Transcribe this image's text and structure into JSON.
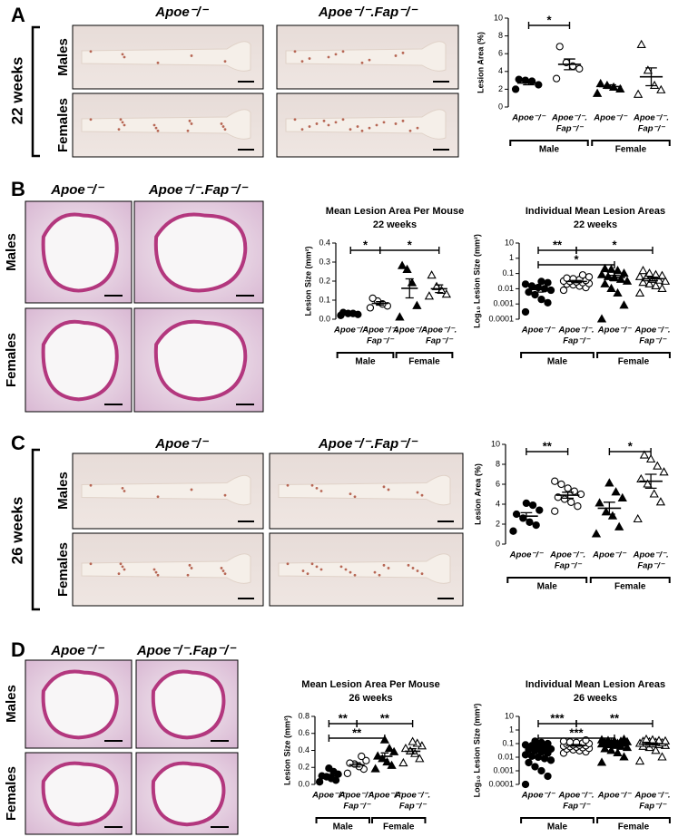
{
  "panels": [
    {
      "letter": "A",
      "column_labels": [
        "Apoe⁻/⁻",
        "Apoe⁻/⁻.Fap⁻/⁻"
      ],
      "row_labels": [
        "Males",
        "Females"
      ],
      "side_label": "22 weeks"
    },
    {
      "letter": "B",
      "column_labels": [
        "Apoe⁻/⁻",
        "Apoe⁻/⁻.Fap⁻/⁻"
      ],
      "row_labels": [
        "Males",
        "Females"
      ]
    },
    {
      "letter": "C",
      "column_labels": [
        "Apoe⁻/⁻",
        "Apoe⁻/⁻.Fap⁻/⁻"
      ],
      "row_labels": [
        "Males",
        "Females"
      ],
      "side_label": "26 weeks"
    },
    {
      "letter": "D",
      "column_labels": [
        "Apoe⁻/⁻",
        "Apoe⁻/⁻.Fap⁻/⁻"
      ],
      "row_labels": [
        "Males",
        "Females"
      ]
    }
  ],
  "chart_data": [
    {
      "type": "dot",
      "ylabel": "Lesion Area (%)",
      "ylim": [
        0,
        10
      ],
      "yticks": [
        0,
        2,
        4,
        6,
        8,
        10
      ],
      "categories": [
        [
          "Apoe⁻/⁻"
        ],
        [
          "Apoe⁻/⁻.",
          "Fap⁻/⁻"
        ],
        [
          "Apoe⁻/⁻"
        ],
        [
          "Apoe⁻/⁻.",
          "Fap⁻/⁻"
        ]
      ],
      "groups": [
        {
          "label": "Male",
          "from": 0,
          "to": 1
        },
        {
          "label": "Female",
          "from": 2,
          "to": 3
        }
      ],
      "markers": [
        "circle-filled",
        "circle-open",
        "triangle-filled",
        "triangle-open"
      ],
      "points": [
        [
          2.0,
          2.5,
          2.9,
          3.0,
          3.1
        ],
        [
          3.2,
          4.3,
          4.6,
          5.0,
          6.8
        ],
        [
          1.5,
          2.0,
          2.2,
          2.4,
          2.6
        ],
        [
          1.4,
          1.9,
          2.4,
          4.1,
          7.0
        ]
      ],
      "means": [
        2.7,
        4.8,
        2.3,
        3.4
      ],
      "sem": [
        0.2,
        0.6,
        0.2,
        1.0
      ],
      "brackets": [
        {
          "from": 0,
          "to": 1,
          "label": "*"
        }
      ]
    },
    {
      "type": "dot",
      "title": "Mean Lesion Area Per Mouse",
      "subtitle": "22 weeks",
      "ylabel": "Lesion Size (mm²)",
      "ylim": [
        0,
        0.4
      ],
      "yticks": [
        {
          "value": 0,
          "label": "0.0"
        },
        0.1,
        0.2,
        0.3,
        0.4
      ],
      "categories": [
        [
          "Apoe⁻/⁻"
        ],
        [
          "Apoe⁻/⁻.",
          "Fap⁻/⁻"
        ],
        [
          "Apoe⁻/⁻"
        ],
        [
          "Apoe⁻/⁻.",
          "Fap⁻/⁻"
        ]
      ],
      "groups": [
        {
          "label": "Male",
          "from": 0,
          "to": 1
        },
        {
          "label": "Female",
          "from": 2,
          "to": 3
        }
      ],
      "markers": [
        "circle-filled",
        "circle-open",
        "triangle-filled",
        "triangle-open"
      ],
      "points": [
        [
          0.02,
          0.025,
          0.03,
          0.03,
          0.035
        ],
        [
          0.06,
          0.07,
          0.08,
          0.095,
          0.11
        ],
        [
          0.01,
          0.07,
          0.19,
          0.26,
          0.28
        ],
        [
          0.12,
          0.13,
          0.15,
          0.17,
          0.23
        ]
      ],
      "means": [
        0.028,
        0.083,
        0.162,
        0.16
      ],
      "sem": [
        0.003,
        0.009,
        0.05,
        0.02
      ],
      "brackets": [
        {
          "from": 0,
          "to": 1,
          "label": "*"
        },
        {
          "from": 1,
          "to": 3,
          "label": "*"
        }
      ]
    },
    {
      "type": "dot",
      "title": "Individual Mean Lesion Areas",
      "subtitle": "22 weeks",
      "ylabel": "Log₁₀ Lesion Size (mm²)",
      "log": true,
      "ylim": [
        0.0001,
        10
      ],
      "yticks": [
        0.0001,
        0.001,
        0.01,
        0.1,
        1,
        10
      ],
      "categories": [
        [
          "Apoe⁻/⁻"
        ],
        [
          "Apoe⁻/⁻.",
          "Fap⁻/⁻"
        ],
        [
          "Apoe⁻/⁻"
        ],
        [
          "Apoe⁻/⁻.",
          "Fap⁻/⁻"
        ]
      ],
      "groups": [
        {
          "label": "Male",
          "from": 0,
          "to": 1
        },
        {
          "label": "Female",
          "from": 2,
          "to": 3
        }
      ],
      "markers": [
        "circle-filled",
        "circle-open",
        "triangle-filled",
        "triangle-open"
      ],
      "points": [
        [
          0.0003,
          0.0012,
          0.002,
          0.004,
          0.006,
          0.008,
          0.01,
          0.012,
          0.015,
          0.02,
          0.025,
          0.03
        ],
        [
          0.008,
          0.012,
          0.015,
          0.018,
          0.02,
          0.022,
          0.025,
          0.028,
          0.03,
          0.032,
          0.035,
          0.04,
          0.045,
          0.05,
          0.06,
          0.08
        ],
        [
          0.0001,
          0.0008,
          0.005,
          0.01,
          0.02,
          0.03,
          0.04,
          0.05,
          0.06,
          0.08,
          0.1,
          0.15,
          0.18,
          0.2
        ],
        [
          0.005,
          0.01,
          0.015,
          0.02,
          0.025,
          0.03,
          0.035,
          0.04,
          0.05,
          0.06,
          0.07,
          0.08,
          0.1,
          0.15
        ]
      ],
      "means": [
        0.009,
        0.03,
        0.055,
        0.045
      ],
      "sem": [
        0.003,
        0.005,
        0.02,
        0.012
      ],
      "brackets": [
        {
          "from": 0,
          "to": 1,
          "label": "**"
        },
        {
          "from": 1,
          "to": 3,
          "label": "*"
        },
        {
          "from": 0,
          "to": 2,
          "label": "*"
        }
      ]
    },
    {
      "type": "dot",
      "ylabel": "Lesion Area (%)",
      "ylim": [
        0,
        10
      ],
      "yticks": [
        0,
        2,
        4,
        6,
        8,
        10
      ],
      "categories": [
        [
          "Apoe⁻/⁻"
        ],
        [
          "Apoe⁻/⁻.",
          "Fap⁻/⁻"
        ],
        [
          "Apoe⁻/⁻"
        ],
        [
          "Apoe⁻/⁻.",
          "Fap⁻/⁻"
        ]
      ],
      "groups": [
        {
          "label": "Male",
          "from": 0,
          "to": 1
        },
        {
          "label": "Female",
          "from": 2,
          "to": 3
        }
      ],
      "markers": [
        "circle-filled",
        "circle-open",
        "triangle-filled",
        "triangle-open"
      ],
      "points": [
        [
          1.3,
          1.9,
          2.2,
          2.6,
          3.0,
          3.4,
          3.9,
          4.1
        ],
        [
          3.3,
          3.8,
          4.2,
          4.5,
          4.7,
          5.0,
          5.3,
          5.6,
          6.0,
          6.3
        ],
        [
          1.0,
          1.7,
          2.8,
          3.2,
          4.1,
          4.6,
          5.2,
          6.1
        ],
        [
          2.5,
          4.2,
          5.0,
          6.0,
          6.5,
          7.2,
          7.8,
          8.5,
          8.9
        ]
      ],
      "means": [
        2.8,
        4.9,
        3.6,
        6.3
      ],
      "sem": [
        0.35,
        0.3,
        0.6,
        0.7
      ],
      "brackets": [
        {
          "from": 0,
          "to": 1,
          "label": "**"
        },
        {
          "from": 2,
          "to": 3,
          "label": "*"
        }
      ]
    },
    {
      "type": "dot",
      "title": "Mean Lesion Area Per Mouse",
      "subtitle": "26 weeks",
      "ylabel": "Lesion Size (mm²)",
      "ylim": [
        0,
        0.8
      ],
      "yticks": [
        {
          "value": 0,
          "label": "0.0"
        },
        0.2,
        0.4,
        0.6,
        0.8
      ],
      "categories": [
        [
          "Apoe⁻/⁻"
        ],
        [
          "Apoe⁻/⁻.",
          "Fap⁻/⁻"
        ],
        [
          "Apoe⁻/⁻"
        ],
        [
          "Apoe⁻/⁻.",
          "Fap⁻/⁻"
        ]
      ],
      "groups": [
        {
          "label": "Male",
          "from": 0,
          "to": 1
        },
        {
          "label": "Female",
          "from": 2,
          "to": 3
        }
      ],
      "markers": [
        "circle-filled",
        "circle-open",
        "triangle-filled",
        "triangle-open"
      ],
      "points": [
        [
          0.03,
          0.05,
          0.07,
          0.09,
          0.1,
          0.12,
          0.15,
          0.19
        ],
        [
          0.13,
          0.18,
          0.21,
          0.24,
          0.25,
          0.28,
          0.33
        ],
        [
          0.18,
          0.22,
          0.26,
          0.3,
          0.33,
          0.38,
          0.42,
          0.52
        ],
        [
          0.25,
          0.3,
          0.36,
          0.39,
          0.42,
          0.45,
          0.48,
          0.5
        ]
      ],
      "means": [
        0.1,
        0.23,
        0.33,
        0.39
      ],
      "sem": [
        0.018,
        0.025,
        0.04,
        0.03
      ],
      "brackets": [
        {
          "from": 1,
          "to": 3,
          "label": "**"
        },
        {
          "from": 0,
          "to": 2,
          "label": "**"
        },
        {
          "from": 0,
          "to": 1,
          "label": "**"
        }
      ]
    },
    {
      "type": "dot",
      "title": "Individual Mean Lesion Areas",
      "subtitle": "26 weeks",
      "ylabel": "Log₁₀ Lesion Size (mm²)",
      "log": true,
      "ylim": [
        0.0001,
        10
      ],
      "yticks": [
        0.0001,
        0.001,
        0.01,
        0.1,
        1,
        10
      ],
      "categories": [
        [
          "Apoe⁻/⁻"
        ],
        [
          "Apoe⁻/⁻.",
          "Fap⁻/⁻"
        ],
        [
          "Apoe⁻/⁻"
        ],
        [
          "Apoe⁻/⁻.",
          "Fap⁻/⁻"
        ]
      ],
      "groups": [
        {
          "label": "Male",
          "from": 0,
          "to": 1
        },
        {
          "label": "Female",
          "from": 2,
          "to": 3
        }
      ],
      "markers": [
        "circle-filled",
        "circle-open",
        "triangle-filled",
        "triangle-open"
      ],
      "points": [
        [
          0.0001,
          0.0004,
          0.001,
          0.002,
          0.004,
          0.006,
          0.008,
          0.01,
          0.012,
          0.015,
          0.02,
          0.025,
          0.03,
          0.035,
          0.04,
          0.05,
          0.06,
          0.07,
          0.08,
          0.1,
          0.12,
          0.15
        ],
        [
          0.02,
          0.025,
          0.03,
          0.035,
          0.04,
          0.045,
          0.05,
          0.055,
          0.06,
          0.065,
          0.07,
          0.075,
          0.08,
          0.09,
          0.1,
          0.11,
          0.12,
          0.13,
          0.15,
          0.18
        ],
        [
          0.004,
          0.01,
          0.02,
          0.03,
          0.04,
          0.05,
          0.06,
          0.07,
          0.08,
          0.09,
          0.1,
          0.1,
          0.11,
          0.12,
          0.13,
          0.14,
          0.15,
          0.16,
          0.18,
          0.2
        ],
        [
          0.005,
          0.01,
          0.03,
          0.05,
          0.06,
          0.07,
          0.08,
          0.09,
          0.1,
          0.1,
          0.11,
          0.12,
          0.13,
          0.14,
          0.15,
          0.16,
          0.18,
          0.2
        ]
      ],
      "means": [
        0.03,
        0.075,
        0.095,
        0.1
      ],
      "sem": [
        0.007,
        0.01,
        0.012,
        0.012
      ],
      "brackets": [
        {
          "from": 0,
          "to": 1,
          "label": "***"
        },
        {
          "from": 1,
          "to": 3,
          "label": "**"
        },
        {
          "from": 0,
          "to": 2,
          "label": "***"
        }
      ]
    }
  ]
}
